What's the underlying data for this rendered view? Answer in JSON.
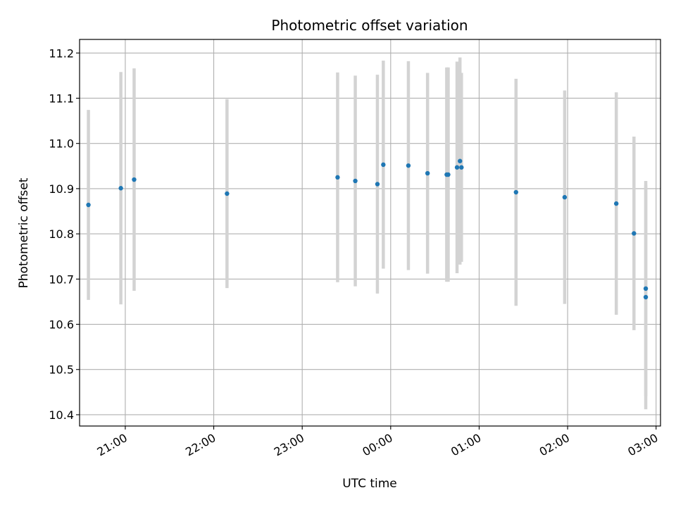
{
  "chart_data": {
    "type": "scatter",
    "title": "Photometric offset variation",
    "xlabel": "UTC time",
    "ylabel": "Photometric offset",
    "x_tick_labels": [
      "21:00",
      "22:00",
      "23:00",
      "00:00",
      "01:00",
      "02:00",
      "03:00"
    ],
    "y_tick_labels": [
      "10.4",
      "10.5",
      "10.6",
      "10.7",
      "10.8",
      "10.9",
      "11.0",
      "11.1",
      "11.2"
    ],
    "xlim": [
      "20:29",
      "03:03"
    ],
    "ylim": [
      10.375,
      11.23
    ],
    "grid": true,
    "legend": "none",
    "colors": {
      "points": "#1f77b4",
      "error_bars": "#d3d3d3",
      "grid": "#b0b0b0"
    },
    "series": [
      {
        "points": [
          {
            "x": "20:35",
            "y": 10.864,
            "err": 0.21
          },
          {
            "x": "20:57",
            "y": 10.901,
            "err": 0.257
          },
          {
            "x": "21:06",
            "y": 10.92,
            "err": 0.246
          },
          {
            "x": "22:09",
            "y": 10.889,
            "err": 0.209
          },
          {
            "x": "23:24",
            "y": 10.925,
            "err": 0.232
          },
          {
            "x": "23:36",
            "y": 10.917,
            "err": 0.233
          },
          {
            "x": "23:51",
            "y": 10.91,
            "err": 0.242
          },
          {
            "x": "23:55",
            "y": 10.953,
            "err": 0.23
          },
          {
            "x": "00:12",
            "y": 10.951,
            "err": 0.231
          },
          {
            "x": "00:25",
            "y": 10.934,
            "err": 0.222
          },
          {
            "x": "00:38",
            "y": 10.931,
            "err": 0.237
          },
          {
            "x": "00:39",
            "y": 10.931,
            "err": 0.237
          },
          {
            "x": "00:45",
            "y": 10.947,
            "err": 0.234
          },
          {
            "x": "00:47",
            "y": 10.961,
            "err": 0.229
          },
          {
            "x": "00:48",
            "y": 10.947,
            "err": 0.209
          },
          {
            "x": "01:25",
            "y": 10.892,
            "err": 0.251
          },
          {
            "x": "01:58",
            "y": 10.881,
            "err": 0.236
          },
          {
            "x": "02:33",
            "y": 10.867,
            "err": 0.246
          },
          {
            "x": "02:45",
            "y": 10.801,
            "err": 0.214
          },
          {
            "x": "02:53",
            "y": 10.679,
            "err": 0.238
          },
          {
            "x": "02:53",
            "y": 10.66,
            "err": 0.248
          }
        ]
      }
    ]
  }
}
